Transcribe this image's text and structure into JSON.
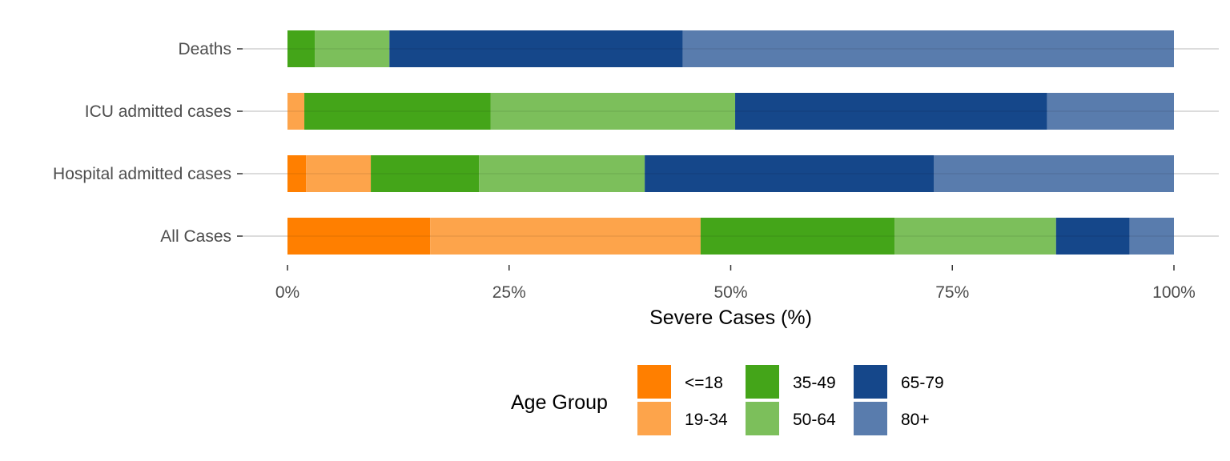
{
  "chart_data": {
    "type": "bar",
    "orientation": "horizontal",
    "stacked": "percent",
    "categories": [
      "Deaths",
      "ICU admitted cases",
      "Hospital admitted cases",
      "All Cases"
    ],
    "series": [
      {
        "name": "<=18",
        "color": "#ff7f00",
        "values": [
          0.0,
          0.0,
          2.1,
          16.1
        ]
      },
      {
        "name": "19-34",
        "color": "#fda44b",
        "values": [
          0.0,
          1.9,
          7.3,
          30.5
        ]
      },
      {
        "name": "35-49",
        "color": "#44a519",
        "values": [
          3.1,
          21.0,
          12.2,
          21.9
        ]
      },
      {
        "name": "50-64",
        "color": "#7cbf5b",
        "values": [
          8.4,
          27.6,
          18.7,
          18.2
        ]
      },
      {
        "name": "65-79",
        "color": "#15478a",
        "values": [
          33.1,
          35.2,
          32.6,
          8.3
        ]
      },
      {
        "name": "80+",
        "color": "#597cad",
        "values": [
          55.4,
          14.3,
          27.1,
          5.0
        ]
      }
    ],
    "xlim": [
      0,
      100
    ],
    "x_ticks": [
      "0%",
      "25%",
      "50%",
      "75%",
      "100%"
    ],
    "x_tick_values": [
      0,
      25,
      50,
      75,
      100
    ],
    "xlabel": "Severe Cases (%)",
    "ylabel": "",
    "legend": {
      "title": "Age Group",
      "placement": "bottom"
    },
    "grid": {
      "major_y": true,
      "major_x": false
    }
  }
}
